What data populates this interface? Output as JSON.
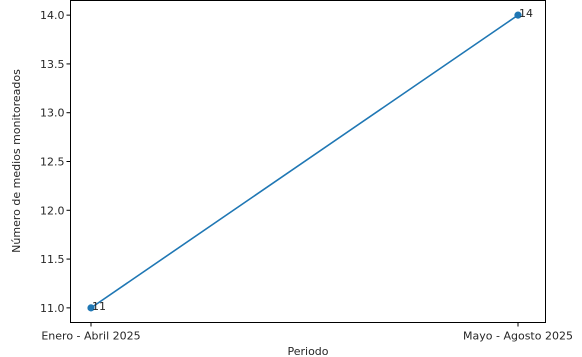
{
  "chart_data": {
    "type": "line",
    "title": "",
    "xlabel": "Periodo",
    "ylabel": "Número de medios monitoreados",
    "categories": [
      "Enero - Abril 2025",
      "Mayo - Agosto 2025"
    ],
    "series": [
      {
        "values": [
          11,
          14
        ],
        "color": "#1f77b4",
        "marker": "circle"
      }
    ],
    "data_labels": [
      "11",
      "14"
    ],
    "ylim": [
      10.85,
      14.15
    ],
    "yticks": [
      11.0,
      11.5,
      12.0,
      12.5,
      13.0,
      13.5,
      14.0
    ],
    "ytick_labels": [
      "11.0",
      "11.5",
      "12.0",
      "12.5",
      "13.0",
      "13.5",
      "14.0"
    ],
    "grid": false,
    "legend": "none"
  }
}
